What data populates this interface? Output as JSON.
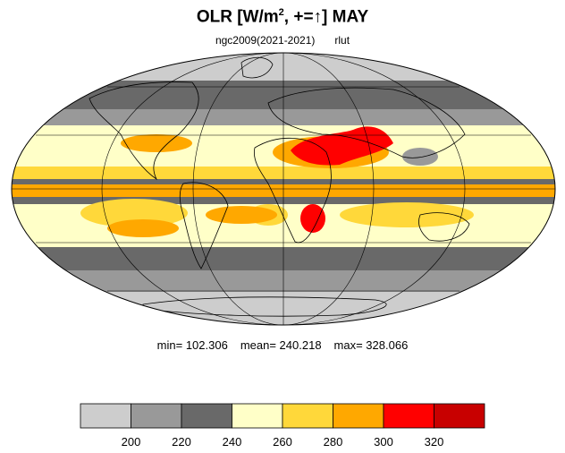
{
  "title": {
    "main": "OLR [W/m",
    "sup": "2",
    "after": ", +=",
    "arrow": "↑",
    "end": "] MAY"
  },
  "subtitle": {
    "model": "ngc2009(2021-2021)",
    "variable": "rlut"
  },
  "stats": {
    "min": "min= 102.306",
    "mean": "mean= 240.218",
    "max": "max= 328.066"
  },
  "colorbar": {
    "colors": [
      "#cdcdcd",
      "#999999",
      "#696969",
      "#ffffc8",
      "#ffd83a",
      "#ffa800",
      "#ff0000",
      "#c80000"
    ],
    "ticks": [
      "200",
      "220",
      "240",
      "260",
      "280",
      "300",
      "320"
    ]
  },
  "map_colors": {
    "ocean_outline": "#000000",
    "land_outline": "#000000"
  }
}
